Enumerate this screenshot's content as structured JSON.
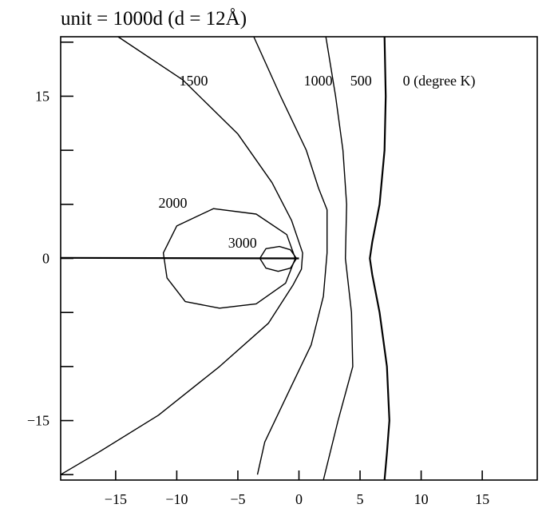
{
  "chart_data": {
    "type": "line",
    "title": "unit = 1000d (d = 12Å)",
    "xlabel": "",
    "ylabel": "",
    "xlim": [
      -19.5,
      19.5
    ],
    "ylim": [
      -20.5,
      20.5
    ],
    "x_ticks": [
      -15,
      -10,
      -5,
      0,
      5,
      10,
      15
    ],
    "x_tick_labels": [
      "−15",
      "−10",
      "−5",
      "0",
      "5",
      "10",
      "15"
    ],
    "y_ticks": [
      -20,
      -15,
      -10,
      -5,
      0,
      5,
      10,
      15,
      20
    ],
    "y_tick_labels": {
      "-15": "−15",
      "0": "0",
      "15": "15"
    },
    "grid": false,
    "series": [
      {
        "name": "0 (degree K)",
        "label_at": [
          8.5,
          16
        ],
        "points": [
          [
            7.0,
            20.5
          ],
          [
            7.1,
            15.0
          ],
          [
            7.0,
            10.0
          ],
          [
            6.6,
            5.0
          ],
          [
            6.0,
            1.5
          ],
          [
            5.8,
            0.0
          ],
          [
            6.0,
            -1.5
          ],
          [
            6.6,
            -5.0
          ],
          [
            7.2,
            -10.0
          ],
          [
            7.4,
            -15.0
          ],
          [
            7.2,
            -18.0
          ],
          [
            7.0,
            -20.5
          ]
        ]
      },
      {
        "name": "500",
        "label_at": [
          4.2,
          16
        ],
        "points": [
          [
            2.2,
            20.5
          ],
          [
            3.0,
            15.0
          ],
          [
            3.6,
            10.0
          ],
          [
            3.9,
            5.0
          ],
          [
            3.8,
            0.0
          ],
          [
            4.3,
            -5.0
          ],
          [
            4.4,
            -10.0
          ],
          [
            3.2,
            -15.0
          ],
          [
            2.0,
            -20.5
          ]
        ]
      },
      {
        "name": "1000",
        "label_at": [
          0.4,
          16
        ],
        "points": [
          [
            -3.7,
            20.5
          ],
          [
            -1.5,
            15.0
          ],
          [
            0.6,
            10.0
          ],
          [
            1.6,
            6.5
          ],
          [
            2.3,
            4.5
          ],
          [
            2.3,
            0.5
          ],
          [
            2.0,
            -3.5
          ],
          [
            1.0,
            -8.0
          ],
          [
            -0.7,
            -12.0
          ],
          [
            -2.8,
            -17.0
          ],
          [
            -3.4,
            -20.0
          ]
        ]
      },
      {
        "name": "1500",
        "label_at": [
          -9.8,
          16
        ],
        "points": [
          [
            -14.8,
            20.5
          ],
          [
            -9.5,
            16.5
          ],
          [
            -5.0,
            11.5
          ],
          [
            -2.2,
            7.0
          ],
          [
            -0.6,
            3.5
          ],
          [
            0.3,
            0.5
          ],
          [
            0.2,
            -1.0
          ],
          [
            -0.5,
            -2.5
          ],
          [
            -2.5,
            -6.0
          ],
          [
            -6.5,
            -10.0
          ],
          [
            -11.5,
            -14.5
          ],
          [
            -16.5,
            -18.0
          ],
          [
            -19.5,
            -20.0
          ]
        ]
      },
      {
        "name": "2000",
        "label_at": [
          -11.5,
          4.7
        ],
        "points": [
          [
            -0.3,
            0.0
          ],
          [
            -1.0,
            2.2
          ],
          [
            -3.5,
            4.1
          ],
          [
            -7.0,
            4.6
          ],
          [
            -10.0,
            3.0
          ],
          [
            -11.1,
            0.5
          ],
          [
            -10.8,
            -1.8
          ],
          [
            -9.3,
            -4.0
          ],
          [
            -6.5,
            -4.6
          ],
          [
            -3.5,
            -4.2
          ],
          [
            -1.1,
            -2.3
          ],
          [
            -0.3,
            0.0
          ]
        ]
      },
      {
        "name": "3000",
        "label_at": [
          -5.8,
          1.0
        ],
        "points": [
          [
            -3.2,
            0.0
          ],
          [
            -2.7,
            0.9
          ],
          [
            -1.6,
            1.1
          ],
          [
            -0.7,
            0.8
          ],
          [
            -0.2,
            0.0
          ],
          [
            -0.7,
            -0.9
          ],
          [
            -1.7,
            -1.2
          ],
          [
            -2.7,
            -0.9
          ],
          [
            -3.2,
            0.0
          ]
        ]
      }
    ],
    "reference_lines": [
      {
        "name": "crack-axis",
        "points": [
          [
            -19.5,
            0.05
          ],
          [
            0.0,
            0.0
          ]
        ]
      }
    ]
  }
}
